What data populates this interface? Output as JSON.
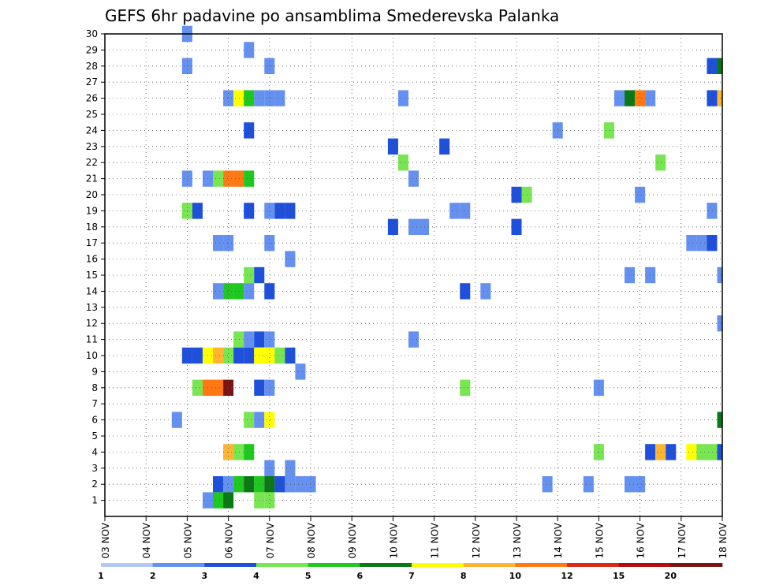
{
  "chart_data": {
    "type": "heatmap",
    "title": "GEFS 6hr padavine po ansamblima Smederevska Palanka",
    "y_ticks": [
      1,
      2,
      3,
      4,
      5,
      6,
      7,
      8,
      9,
      10,
      11,
      12,
      13,
      14,
      15,
      16,
      17,
      18,
      19,
      20,
      21,
      22,
      23,
      24,
      25,
      26,
      27,
      28,
      29,
      30
    ],
    "y_range": [
      0,
      30
    ],
    "x_range": [
      0,
      15
    ],
    "x_ticks": [
      "03 NOV",
      "04 NOV",
      "05 NOV",
      "06 NOV",
      "07 NOV",
      "08 NOV",
      "09 NOV",
      "10 NOV",
      "11 NOV",
      "12 NOV",
      "13 NOV",
      "14 NOV",
      "15 NOV",
      "16 NOV",
      "17 NOV",
      "18 NOV"
    ],
    "grid": true,
    "legend": {
      "placement": "bottom",
      "thresholds": [
        "1",
        "2",
        "3",
        "4",
        "5",
        "6",
        "7",
        "8",
        "10",
        "12",
        "15",
        "20"
      ],
      "colors": [
        "#b4c8f5",
        "#6490f0",
        "#1e50dc",
        "#78e650",
        "#1ec81e",
        "#0a7814",
        "#ffff00",
        "#ffb432",
        "#ff7814",
        "#dc2814",
        "#b40a0a",
        "#781414"
      ]
    },
    "cells": [
      {
        "x": 2.0,
        "y": 30,
        "c": 1
      },
      {
        "x": 3.5,
        "y": 29,
        "c": 1
      },
      {
        "x": 2.0,
        "y": 28,
        "c": 1
      },
      {
        "x": 4.0,
        "y": 28,
        "c": 1
      },
      {
        "x": 14.75,
        "y": 28,
        "c": 2
      },
      {
        "x": 15.0,
        "y": 28,
        "c": 5
      },
      {
        "x": 3.0,
        "y": 26,
        "c": 1
      },
      {
        "x": 3.25,
        "y": 26,
        "c": 6
      },
      {
        "x": 3.5,
        "y": 26,
        "c": 4
      },
      {
        "x": 3.75,
        "y": 26,
        "c": 1
      },
      {
        "x": 4.0,
        "y": 26,
        "c": 1
      },
      {
        "x": 4.25,
        "y": 26,
        "c": 1
      },
      {
        "x": 7.25,
        "y": 26,
        "c": 1
      },
      {
        "x": 12.5,
        "y": 26,
        "c": 1
      },
      {
        "x": 12.75,
        "y": 26,
        "c": 5
      },
      {
        "x": 13.0,
        "y": 26,
        "c": 8
      },
      {
        "x": 13.25,
        "y": 26,
        "c": 1
      },
      {
        "x": 14.75,
        "y": 26,
        "c": 2
      },
      {
        "x": 15.0,
        "y": 26,
        "c": 7
      },
      {
        "x": 3.5,
        "y": 24,
        "c": 2
      },
      {
        "x": 11.0,
        "y": 24,
        "c": 1
      },
      {
        "x": 12.25,
        "y": 24,
        "c": 3
      },
      {
        "x": 7.0,
        "y": 23,
        "c": 2
      },
      {
        "x": 8.25,
        "y": 23,
        "c": 2
      },
      {
        "x": 7.25,
        "y": 22,
        "c": 3
      },
      {
        "x": 13.5,
        "y": 22,
        "c": 3
      },
      {
        "x": 2.0,
        "y": 21,
        "c": 1
      },
      {
        "x": 2.5,
        "y": 21,
        "c": 1
      },
      {
        "x": 2.75,
        "y": 21,
        "c": 3
      },
      {
        "x": 3.0,
        "y": 21,
        "c": 8
      },
      {
        "x": 3.25,
        "y": 21,
        "c": 8
      },
      {
        "x": 3.5,
        "y": 21,
        "c": 4
      },
      {
        "x": 7.5,
        "y": 21,
        "c": 1
      },
      {
        "x": 10.0,
        "y": 20,
        "c": 2
      },
      {
        "x": 10.25,
        "y": 20,
        "c": 3
      },
      {
        "x": 13.0,
        "y": 20,
        "c": 1
      },
      {
        "x": 2.0,
        "y": 19,
        "c": 3
      },
      {
        "x": 2.25,
        "y": 19,
        "c": 2
      },
      {
        "x": 3.5,
        "y": 19,
        "c": 2
      },
      {
        "x": 4.0,
        "y": 19,
        "c": 1
      },
      {
        "x": 4.25,
        "y": 19,
        "c": 2
      },
      {
        "x": 4.5,
        "y": 19,
        "c": 2
      },
      {
        "x": 8.5,
        "y": 19,
        "c": 1
      },
      {
        "x": 8.75,
        "y": 19,
        "c": 1
      },
      {
        "x": 14.75,
        "y": 19,
        "c": 1
      },
      {
        "x": 7.0,
        "y": 18,
        "c": 2
      },
      {
        "x": 7.5,
        "y": 18,
        "c": 1
      },
      {
        "x": 7.75,
        "y": 18,
        "c": 1
      },
      {
        "x": 10.0,
        "y": 18,
        "c": 2
      },
      {
        "x": 2.75,
        "y": 17,
        "c": 1
      },
      {
        "x": 3.0,
        "y": 17,
        "c": 1
      },
      {
        "x": 4.0,
        "y": 17,
        "c": 1
      },
      {
        "x": 14.25,
        "y": 17,
        "c": 1
      },
      {
        "x": 14.5,
        "y": 17,
        "c": 1
      },
      {
        "x": 14.75,
        "y": 17,
        "c": 2
      },
      {
        "x": 4.5,
        "y": 16,
        "c": 1
      },
      {
        "x": 3.5,
        "y": 15,
        "c": 3
      },
      {
        "x": 3.75,
        "y": 15,
        "c": 2
      },
      {
        "x": 12.75,
        "y": 15,
        "c": 1
      },
      {
        "x": 13.25,
        "y": 15,
        "c": 1
      },
      {
        "x": 15.0,
        "y": 15,
        "c": 1
      },
      {
        "x": 2.75,
        "y": 14,
        "c": 1
      },
      {
        "x": 3.0,
        "y": 14,
        "c": 4
      },
      {
        "x": 3.25,
        "y": 14,
        "c": 4
      },
      {
        "x": 3.5,
        "y": 14,
        "c": 1
      },
      {
        "x": 4.0,
        "y": 14,
        "c": 2
      },
      {
        "x": 8.75,
        "y": 14,
        "c": 2
      },
      {
        "x": 9.25,
        "y": 14,
        "c": 1
      },
      {
        "x": 15.0,
        "y": 12,
        "c": 1
      },
      {
        "x": 3.25,
        "y": 11,
        "c": 3
      },
      {
        "x": 3.5,
        "y": 11,
        "c": 1
      },
      {
        "x": 3.75,
        "y": 11,
        "c": 2
      },
      {
        "x": 4.0,
        "y": 11,
        "c": 1
      },
      {
        "x": 7.5,
        "y": 11,
        "c": 1
      },
      {
        "x": 2.0,
        "y": 10,
        "c": 2
      },
      {
        "x": 2.25,
        "y": 10,
        "c": 2
      },
      {
        "x": 2.5,
        "y": 10,
        "c": 6
      },
      {
        "x": 2.75,
        "y": 10,
        "c": 7
      },
      {
        "x": 3.0,
        "y": 10,
        "c": 3
      },
      {
        "x": 3.25,
        "y": 10,
        "c": 2
      },
      {
        "x": 3.5,
        "y": 10,
        "c": 2
      },
      {
        "x": 3.75,
        "y": 10,
        "c": 6
      },
      {
        "x": 4.0,
        "y": 10,
        "c": 6
      },
      {
        "x": 4.25,
        "y": 10,
        "c": 3
      },
      {
        "x": 4.5,
        "y": 10,
        "c": 2
      },
      {
        "x": 4.75,
        "y": 9,
        "c": 1
      },
      {
        "x": 2.25,
        "y": 8,
        "c": 3
      },
      {
        "x": 2.5,
        "y": 8,
        "c": 8
      },
      {
        "x": 2.75,
        "y": 8,
        "c": 8
      },
      {
        "x": 3.0,
        "y": 8,
        "c": 11
      },
      {
        "x": 3.75,
        "y": 8,
        "c": 2
      },
      {
        "x": 4.0,
        "y": 8,
        "c": 1
      },
      {
        "x": 8.75,
        "y": 8,
        "c": 3
      },
      {
        "x": 12.0,
        "y": 8,
        "c": 1
      },
      {
        "x": 1.75,
        "y": 6,
        "c": 1
      },
      {
        "x": 3.5,
        "y": 6,
        "c": 3
      },
      {
        "x": 3.75,
        "y": 6,
        "c": 1
      },
      {
        "x": 4.0,
        "y": 6,
        "c": 6
      },
      {
        "x": 15.0,
        "y": 6,
        "c": 5
      },
      {
        "x": 3.0,
        "y": 4,
        "c": 7
      },
      {
        "x": 3.25,
        "y": 4,
        "c": 3
      },
      {
        "x": 3.5,
        "y": 4,
        "c": 4
      },
      {
        "x": 12.0,
        "y": 4,
        "c": 3
      },
      {
        "x": 13.25,
        "y": 4,
        "c": 2
      },
      {
        "x": 13.5,
        "y": 4,
        "c": 7
      },
      {
        "x": 13.75,
        "y": 4,
        "c": 2
      },
      {
        "x": 14.25,
        "y": 4,
        "c": 6
      },
      {
        "x": 14.5,
        "y": 4,
        "c": 3
      },
      {
        "x": 14.75,
        "y": 4,
        "c": 3
      },
      {
        "x": 15.0,
        "y": 4,
        "c": 2
      },
      {
        "x": 4.0,
        "y": 3,
        "c": 1
      },
      {
        "x": 4.5,
        "y": 3,
        "c": 1
      },
      {
        "x": 2.75,
        "y": 2,
        "c": 2
      },
      {
        "x": 3.0,
        "y": 2,
        "c": 1
      },
      {
        "x": 3.25,
        "y": 2,
        "c": 4
      },
      {
        "x": 3.5,
        "y": 2,
        "c": 5
      },
      {
        "x": 3.75,
        "y": 2,
        "c": 4
      },
      {
        "x": 4.0,
        "y": 2,
        "c": 5
      },
      {
        "x": 4.25,
        "y": 2,
        "c": 2
      },
      {
        "x": 4.5,
        "y": 2,
        "c": 1
      },
      {
        "x": 4.75,
        "y": 2,
        "c": 1
      },
      {
        "x": 5.0,
        "y": 2,
        "c": 1
      },
      {
        "x": 10.75,
        "y": 2,
        "c": 1
      },
      {
        "x": 11.75,
        "y": 2,
        "c": 1
      },
      {
        "x": 12.75,
        "y": 2,
        "c": 1
      },
      {
        "x": 13.0,
        "y": 2,
        "c": 1
      },
      {
        "x": 2.5,
        "y": 1,
        "c": 1
      },
      {
        "x": 2.75,
        "y": 1,
        "c": 4
      },
      {
        "x": 3.0,
        "y": 1,
        "c": 5
      },
      {
        "x": 3.75,
        "y": 1,
        "c": 3
      },
      {
        "x": 4.0,
        "y": 1,
        "c": 3
      }
    ]
  }
}
